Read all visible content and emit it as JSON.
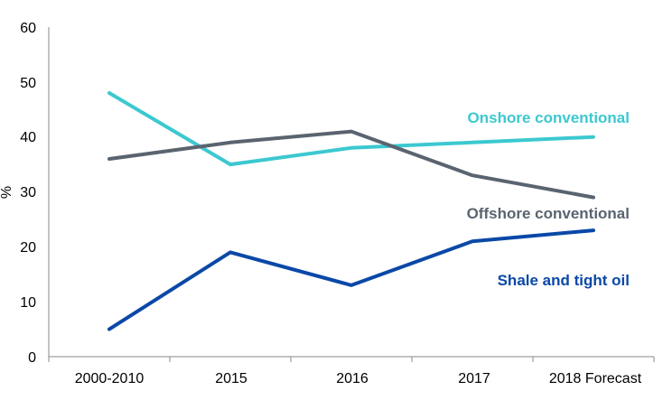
{
  "chart_data": {
    "type": "line",
    "title": "",
    "xlabel": "",
    "ylabel": "%",
    "categories": [
      "2000-2010",
      "2015",
      "2016",
      "2017",
      "2018 Forecast"
    ],
    "ylim": [
      0,
      60
    ],
    "yticks": [
      "0",
      "10",
      "20",
      "30",
      "40",
      "50",
      "60"
    ],
    "grid": false,
    "legend": "inline labels next to lines",
    "series": [
      {
        "name": "Onshore conventional",
        "color": "#3CC8D0",
        "values": [
          48,
          35,
          38,
          39,
          40
        ]
      },
      {
        "name": "Offshore conventional",
        "color": "#5A6470",
        "values": [
          36,
          39,
          41,
          33,
          29
        ]
      },
      {
        "name": "Shale and tight oil",
        "color": "#0A48A8",
        "values": [
          5,
          19,
          13,
          21,
          23
        ]
      }
    ]
  }
}
